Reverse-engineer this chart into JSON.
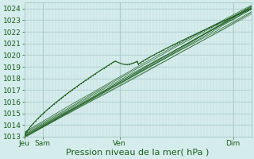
{
  "bg_color": "#d4ecec",
  "grid_major_color": "#a8c8c8",
  "grid_minor_color": "#c0d8d8",
  "line_color": "#1a5c1a",
  "xlabel": "Pression niveau de la mer( hPa )",
  "xtick_labels": [
    "Jeu",
    "Sam",
    "Ven",
    "Dim"
  ],
  "xtick_positions": [
    0.0,
    0.08,
    0.42,
    0.92
  ],
  "ylim": [
    1013,
    1024.5
  ],
  "yticks": [
    1013,
    1014,
    1015,
    1016,
    1017,
    1018,
    1019,
    1020,
    1021,
    1022,
    1023,
    1024
  ],
  "xlabel_fontsize": 8,
  "tick_fontsize": 6.5
}
